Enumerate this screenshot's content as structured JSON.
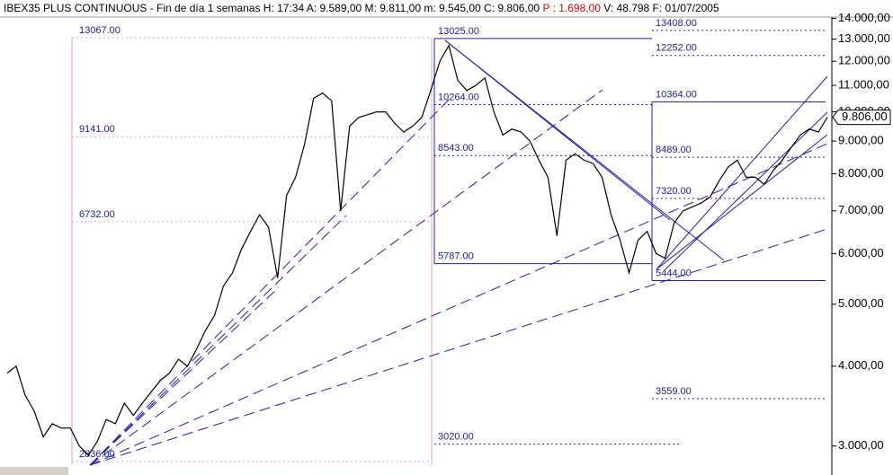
{
  "chart_data": {
    "type": "line",
    "title": "IBEX35 PLUS CONTINUOUS - Fin de día 1 semanas H: 17:34 A: 9.589,00 M: 9.811,00 m: 9.545,00 C: 9.806,00",
    "change": "P : 1.698,00",
    "volume_date": "V: 48.798 F: 01/07/2005",
    "color": "#000000",
    "log_scale": true,
    "ylim": [
      2800,
      14300
    ],
    "yticks": [
      {
        "value": 3000,
        "label": "3.000,00"
      },
      {
        "value": 4000,
        "label": "4.000,00"
      },
      {
        "value": 5000,
        "label": "5.000,00"
      },
      {
        "value": 6000,
        "label": "6.000,00"
      },
      {
        "value": 7000,
        "label": "7.000,00"
      },
      {
        "value": 8000,
        "label": "8.000,00"
      },
      {
        "value": 9000,
        "label": "9.000,00"
      },
      {
        "value": 10000,
        "label": "10.000,00"
      },
      {
        "value": 11000,
        "label": "11.000,00"
      },
      {
        "value": 12000,
        "label": "12.000,00"
      },
      {
        "value": 13000,
        "label": "13.000,00"
      },
      {
        "value": 14000,
        "label": "14.000,00"
      }
    ],
    "last_price": {
      "value": 9806,
      "label": "9.806,00"
    },
    "levels": [
      {
        "value": 13067,
        "label": "13067.00"
      },
      {
        "value": 9141,
        "label": "9141.00"
      },
      {
        "value": 6732,
        "label": "6732.00"
      },
      {
        "value": 2836,
        "label": "2836.00"
      },
      {
        "value": 13025,
        "label": "13025.00"
      },
      {
        "value": 10264,
        "label": "10264.00"
      },
      {
        "value": 8543,
        "label": "8543.00"
      },
      {
        "value": 5787,
        "label": "5787.00"
      },
      {
        "value": 3020,
        "label": "3020.00"
      },
      {
        "value": 13408,
        "label": "13408.00"
      },
      {
        "value": 12252,
        "label": "12252.00"
      },
      {
        "value": 10364,
        "label": "10364.00"
      },
      {
        "value": 8489,
        "label": "8489.00"
      },
      {
        "value": 7320,
        "label": "7320.00"
      },
      {
        "value": 5444,
        "label": "5444.00"
      },
      {
        "value": 3559,
        "label": "3559.00"
      }
    ],
    "values": [
      3900,
      4000,
      3600,
      3400,
      3100,
      3250,
      3200,
      3200,
      3000,
      2900,
      3050,
      3300,
      3250,
      3500,
      3350,
      3500,
      3650,
      3800,
      3900,
      4100,
      4000,
      4250,
      4550,
      4800,
      5340,
      5600,
      6100,
      6500,
      6900,
      6600,
      5500,
      7400,
      7900,
      8900,
      10500,
      10700,
      10400,
      7000,
      9500,
      9800,
      9900,
      10000,
      10000,
      9600,
      9300,
      9500,
      9800,
      10800,
      12000,
      12700,
      11200,
      10800,
      11000,
      11300,
      10000,
      9200,
      9400,
      9300,
      9000,
      8400,
      7900,
      6400,
      8400,
      8600,
      8400,
      8300,
      7900,
      6900,
      6300,
      5600,
      6300,
      6500,
      6000,
      5900,
      6700,
      7000,
      7100,
      7200,
      7360,
      7800,
      8200,
      8400,
      7900,
      7900,
      7700,
      8100,
      8400,
      8800,
      9200,
      9400,
      9300,
      9806
    ]
  }
}
